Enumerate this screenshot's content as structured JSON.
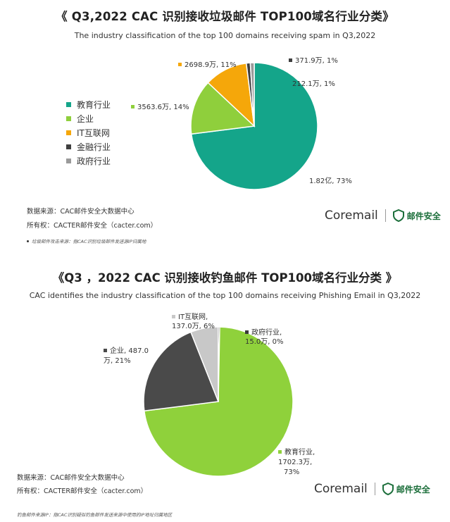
{
  "chart1": {
    "title": "《 Q3,2022 CAC 识别接收垃圾邮件 TOP100域名行业分类》",
    "subtitle": "The industry classification of the top 100 domains receiving spam in Q3,2022",
    "legend": [
      "教育行业",
      "企业",
      "IT互联网",
      "金融行业",
      "政府行业"
    ],
    "labels": {
      "edu": "1.82亿, 73%",
      "ent": "3563.6万, 14%",
      "it": "2698.9万, 11%",
      "fin": "371.9万, 1%",
      "gov": "212.1万, 1%"
    },
    "source": "数据来源：CAC邮件安全大数据中心",
    "owner": "所有权：CACTER邮件安全（cacter.com）",
    "footnote": "垃圾邮件攻击来源：指CAC识别垃圾邮件发送源IP归属地"
  },
  "chart2": {
    "title": "《Q3 ，2022 CAC 识别接收钓鱼邮件 TOP100域名行业分类 》",
    "subtitle": "CAC identifies the industry classification of the top 100 domains receiving Phishing Email in Q3,2022",
    "labels": {
      "edu_line1": "教育行业,",
      "edu_line2": "1702.3万,",
      "edu_line3": "73%",
      "ent_line1": "企业, 487.0",
      "ent_line2": "万, 21%",
      "it_line1": "IT互联网,",
      "it_line2": "137.0万, 6%",
      "gov_line1": "政府行业,",
      "gov_line2": "15.0万, 0%"
    },
    "source": "数据来源：CAC邮件安全大数据中心",
    "owner": "所有权：CACTER邮件安全（cacter.com）",
    "footnote": "钓鱼邮件来源IP：指CAC识别疑似钓鱼邮件发送来源中使用的IP地址归属地区"
  },
  "brand": {
    "coremail": "Coremail",
    "cn": "邮件安全"
  },
  "colors": {
    "edu1": "#14a58a",
    "ent1": "#8fcf3c",
    "it1": "#f5a70a",
    "fin1": "#3f3f3f",
    "gov1": "#9a9a9a",
    "edu2": "#8fd13b",
    "ent2": "#4a4a4a",
    "it2": "#c8c8c8",
    "gov2": "#3a3a3a"
  },
  "chart_data": [
    {
      "type": "pie",
      "title": "《 Q3,2022 CAC 识别接收垃圾邮件 TOP100域名行业分类》",
      "slices": [
        {
          "name": "教育行业",
          "value": 18200,
          "percent": 73,
          "color": "#14a58a"
        },
        {
          "name": "企业",
          "value": 3563.6,
          "percent": 14,
          "color": "#8fcf3c"
        },
        {
          "name": "IT互联网",
          "value": 2698.9,
          "percent": 11,
          "color": "#f5a70a"
        },
        {
          "name": "金融行业",
          "value": 371.9,
          "percent": 1,
          "color": "#3f3f3f"
        },
        {
          "name": "政府行业",
          "value": 212.1,
          "percent": 1,
          "color": "#9a9a9a"
        }
      ],
      "legend": "left"
    },
    {
      "type": "pie",
      "title": "《Q3 ，2022 CAC 识别接收钓鱼邮件 TOP100域名行业分类 》",
      "slices": [
        {
          "name": "教育行业",
          "value": 1702.3,
          "percent": 73,
          "color": "#8fd13b"
        },
        {
          "name": "企业",
          "value": 487.0,
          "percent": 21,
          "color": "#4a4a4a"
        },
        {
          "name": "IT互联网",
          "value": 137.0,
          "percent": 6,
          "color": "#c8c8c8"
        },
        {
          "name": "政府行业",
          "value": 15.0,
          "percent": 0,
          "color": "#3a3a3a"
        }
      ],
      "legend": "none"
    }
  ]
}
